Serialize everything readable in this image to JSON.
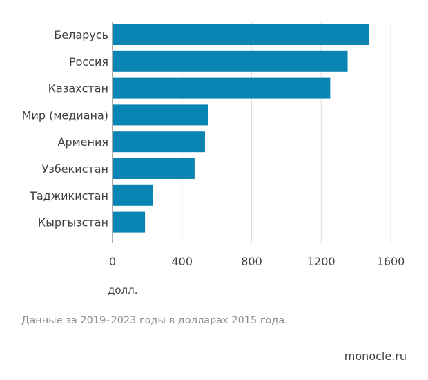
{
  "chart_data": {
    "type": "bar",
    "orientation": "horizontal",
    "categories": [
      "Беларусь",
      "Россия",
      "Казахстан",
      "Мир (медиана)",
      "Армения",
      "Узбекистан",
      "Таджикистан",
      "Кыргызстан"
    ],
    "values": [
      1475,
      1350,
      1250,
      550,
      530,
      470,
      230,
      185
    ],
    "xlim": [
      0,
      1600
    ],
    "xticks": [
      "0",
      "400",
      "800",
      "1200",
      "1600"
    ],
    "xlabel": "долл.",
    "grid": "vertical",
    "bar_color": "#0a84b2"
  },
  "note": "Данные за 2019–2023 годы в долларах 2015 года.",
  "source": "monocle.ru"
}
